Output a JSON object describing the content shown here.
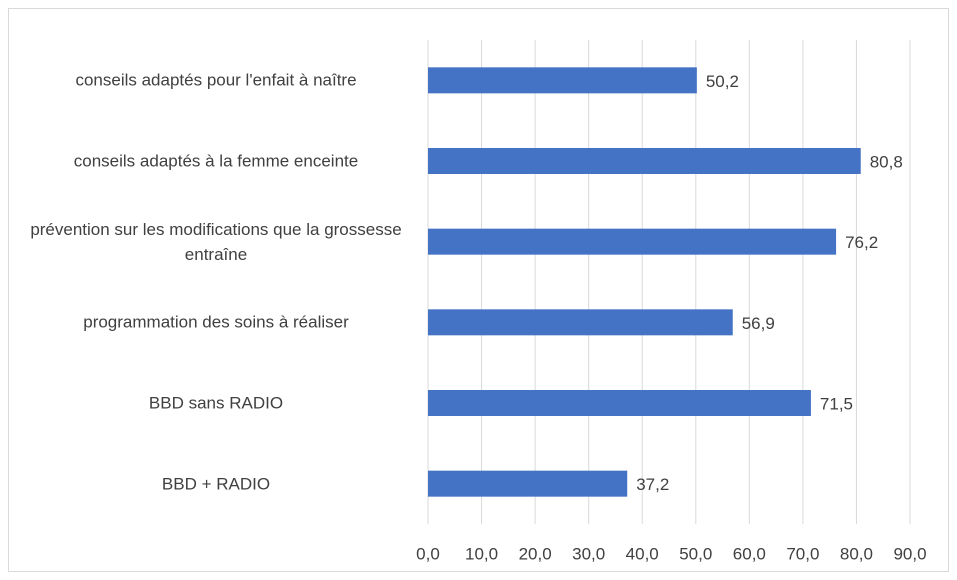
{
  "chart_data": {
    "type": "bar",
    "orientation": "horizontal",
    "categories": [
      "conseils adaptés pour l'enfait à naître",
      "conseils adaptés à la femme enceinte",
      "prévention sur les modifications que la grossesse entraîne",
      "programmation des soins à réaliser",
      "BBD sans RADIO",
      "BBD + RADIO"
    ],
    "values": [
      50.2,
      80.8,
      76.2,
      56.9,
      71.5,
      37.2
    ],
    "value_labels": [
      "50,2",
      "80,8",
      "76,2",
      "56,9",
      "71,5",
      "37,2"
    ],
    "color": "#4472c4",
    "xlim": [
      0,
      90
    ],
    "xticks": [
      {
        "value": 0,
        "label": "0,0"
      },
      {
        "value": 10,
        "label": "10,0"
      },
      {
        "value": 20,
        "label": "20,0"
      },
      {
        "value": 30,
        "label": "30,0"
      },
      {
        "value": 40,
        "label": "40,0"
      },
      {
        "value": 50,
        "label": "50,0"
      },
      {
        "value": 60,
        "label": "60,0"
      },
      {
        "value": 70,
        "label": "70,0"
      },
      {
        "value": 80,
        "label": "80,0"
      },
      {
        "value": 90,
        "label": "90,0"
      }
    ],
    "grid": true
  }
}
